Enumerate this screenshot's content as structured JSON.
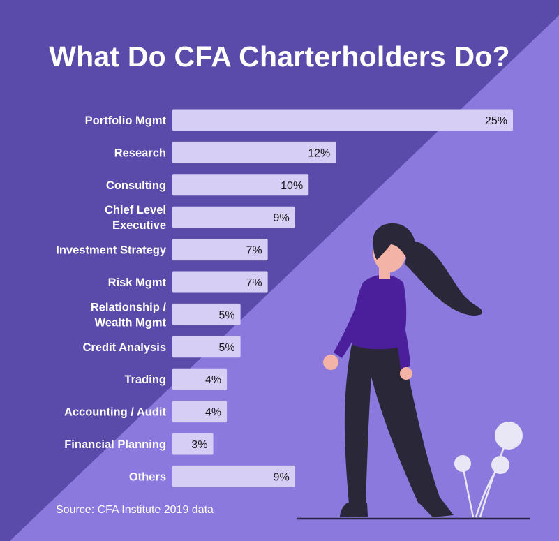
{
  "title": "What Do CFA Charterholders Do?",
  "source": "Source: CFA Institute 2019 data",
  "colors": {
    "background_dark": "#5a4bab",
    "background_light": "#8b79de",
    "bar_fill": "#d6cef5",
    "label_text": "#ffffff",
    "value_text": "#1a1a1a",
    "figure_shirt": "#4b1e9c",
    "figure_pants": "#2a2838",
    "figure_hair": "#2a2838",
    "figure_skin": "#f3b3a6",
    "plant": "#e9e6f5"
  },
  "chart_data": {
    "type": "bar",
    "orientation": "horizontal",
    "categories": [
      [
        "Portfolio Mgmt"
      ],
      [
        "Research"
      ],
      [
        "Consulting"
      ],
      [
        "Chief Level",
        "Executive"
      ],
      [
        "Investment Strategy"
      ],
      [
        "Risk Mgmt"
      ],
      [
        "Relationship /",
        "Wealth Mgmt"
      ],
      [
        "Credit Analysis"
      ],
      [
        "Trading"
      ],
      [
        "Accounting / Audit"
      ],
      [
        "Financial Planning"
      ],
      [
        "Others"
      ]
    ],
    "values": [
      25,
      12,
      10,
      9,
      7,
      7,
      5,
      5,
      4,
      4,
      3,
      9
    ],
    "value_labels": [
      "25%",
      "12%",
      "10%",
      "9%",
      "7%",
      "7%",
      "5%",
      "5%",
      "4%",
      "4%",
      "3%",
      "9%"
    ],
    "unit": "%",
    "xlim": [
      0,
      25
    ],
    "grid": false,
    "legend": "none",
    "title": "What Do CFA Charterholders Do?"
  }
}
